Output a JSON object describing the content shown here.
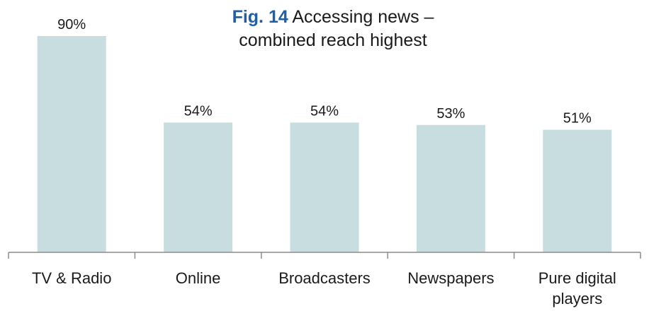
{
  "chart_data": {
    "type": "bar",
    "title_fig": "Fig. 14",
    "title_line1": "Accessing news –",
    "title_line2": "combined reach highest",
    "categories": [
      "TV & Radio",
      "Online",
      "Broadcasters",
      "Newspapers",
      "Pure digital players"
    ],
    "category_lines": [
      [
        "TV & Radio"
      ],
      [
        "Online"
      ],
      [
        "Broadcasters"
      ],
      [
        "Newspapers"
      ],
      [
        "Pure digital",
        "players"
      ]
    ],
    "values": [
      90,
      54,
      54,
      53,
      51
    ],
    "value_labels": [
      "90%",
      "54%",
      "54%",
      "53%",
      "51%"
    ],
    "ylim": [
      0,
      100
    ],
    "grid": false,
    "legend": "none",
    "colors": {
      "bar": "#c8dde0",
      "axis": "#8c8c8c",
      "text": "#1a1a1a",
      "fig": "#1f5fa8"
    }
  }
}
